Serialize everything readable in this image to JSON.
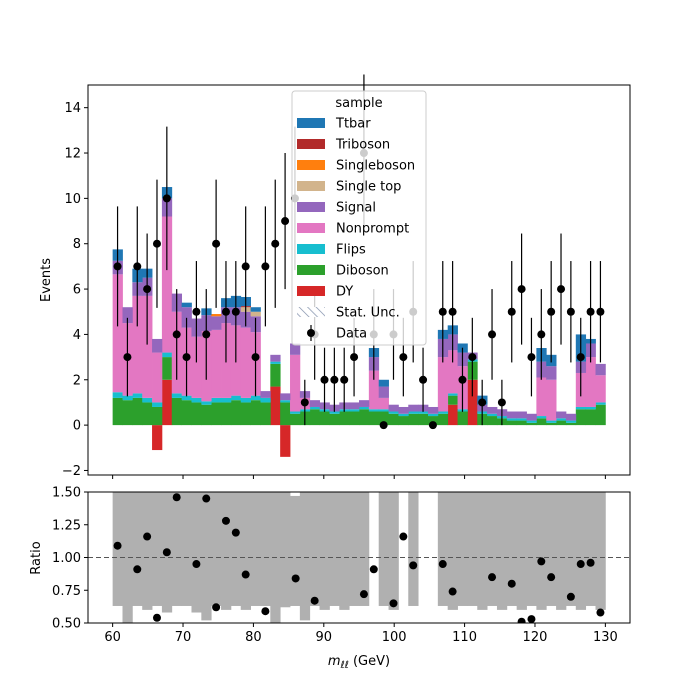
{
  "chart_data": [
    {
      "type": "area",
      "panel": "main",
      "ylabel": "Events",
      "xlim": [
        56.5,
        133.5
      ],
      "ylim": [
        -2.2,
        15.0
      ],
      "yticks": [
        -2,
        0,
        2,
        4,
        6,
        8,
        10,
        12,
        14
      ],
      "ytick_labels": [
        "−2",
        "0",
        "2",
        "4",
        "6",
        "8",
        "10",
        "12",
        "14"
      ],
      "xticks": [
        60,
        70,
        80,
        90,
        100,
        110,
        120,
        130
      ],
      "bin_edges": [
        60,
        61.4,
        62.8,
        64.2,
        65.6,
        67,
        68.4,
        69.8,
        71.2,
        72.6,
        74,
        75.4,
        76.8,
        78.2,
        79.6,
        81,
        82.4,
        83.8,
        85.2,
        86.6,
        88,
        89.4,
        90.8,
        92.2,
        93.6,
        95,
        96.4,
        97.8,
        99.2,
        100.6,
        102,
        103.4,
        104.8,
        106.2,
        107.6,
        109,
        110.4,
        111.8,
        113.2,
        114.6,
        116,
        117.4,
        118.8,
        120.2,
        121.6,
        123,
        124.4,
        125.8,
        127.2,
        128.6,
        130
      ],
      "legend": {
        "title": "sample",
        "placement": "upper center",
        "entries": [
          "Ttbar",
          "Triboson",
          "Singleboson",
          "Single top",
          "Signal",
          "Nonprompt",
          "Flips",
          "Diboson",
          "DY",
          "Stat. Unc.",
          "Data"
        ]
      },
      "series": [
        {
          "name": "DY",
          "color": "#d62728",
          "values": [
            0,
            0,
            0,
            0,
            -1.1,
            2.0,
            0,
            0,
            0,
            0,
            0,
            0,
            0,
            0,
            0,
            0,
            1.7,
            -1.4,
            0,
            0,
            0,
            0,
            0,
            0,
            0,
            0,
            0,
            0,
            0,
            0,
            0,
            0,
            0,
            0,
            0.9,
            0,
            2.0,
            0,
            0,
            0,
            0,
            0,
            0,
            0,
            0,
            0,
            0,
            0,
            0,
            0
          ]
        },
        {
          "name": "Diboson",
          "color": "#2ca02c",
          "values": [
            1.2,
            1.1,
            1.2,
            1.0,
            0.8,
            1.0,
            1.2,
            1.1,
            1.0,
            0.9,
            1.0,
            1.0,
            1.1,
            1.0,
            1.1,
            1.0,
            1.0,
            1.0,
            0.5,
            0.6,
            0.7,
            0.6,
            0.5,
            0.6,
            0.6,
            0.7,
            0.6,
            0.6,
            0.5,
            0.4,
            0.5,
            0.5,
            0.4,
            0.5,
            0.4,
            0.6,
            0.8,
            0.5,
            0.4,
            0.3,
            0.2,
            0.2,
            0.1,
            0.3,
            0.1,
            0.2,
            0.1,
            0.7,
            0.7,
            0.9
          ]
        },
        {
          "name": "Flips",
          "color": "#17becf",
          "values": [
            0.25,
            0.2,
            0.2,
            0.2,
            0.2,
            0.2,
            0.2,
            0.2,
            0.2,
            0.15,
            0.2,
            0.2,
            0.2,
            0.2,
            0.2,
            0.2,
            0.1,
            0.1,
            0.1,
            0.1,
            0.1,
            0.1,
            0.1,
            0.1,
            0.1,
            0.1,
            0.1,
            0.1,
            0.1,
            0.1,
            0.1,
            0.1,
            0.1,
            0.1,
            0.1,
            0.1,
            0.1,
            0.1,
            0.1,
            0.1,
            0.1,
            0.1,
            0.1,
            0.1,
            0.1,
            0.1,
            0.1,
            0.1,
            0.1,
            0.1
          ]
        },
        {
          "name": "Nonprompt",
          "color": "#e377c2",
          "values": [
            5.2,
            3.2,
            4.3,
            4.5,
            2.2,
            6.0,
            3.6,
            3.0,
            2.7,
            3.1,
            3.0,
            3.3,
            3.1,
            3.1,
            2.8,
            0,
            0,
            0,
            2.5,
            0.5,
            0,
            0,
            0,
            0,
            0,
            0,
            1.7,
            0.5,
            0,
            0,
            0,
            0,
            0,
            2.4,
            1.9,
            1.9,
            0,
            0,
            0,
            0,
            0,
            0,
            0,
            1.7,
            1.8,
            0,
            0,
            1.5,
            2.2,
            1.2
          ]
        },
        {
          "name": "Signal",
          "color": "#9467bd",
          "values": [
            0.6,
            0.7,
            0.6,
            0.8,
            0.6,
            0.8,
            0.8,
            0.9,
            0.8,
            0.7,
            0.6,
            0.7,
            0.8,
            0.7,
            0.7,
            0.3,
            0.3,
            0.3,
            0.5,
            0.3,
            0.3,
            0.3,
            0.3,
            0.3,
            0.3,
            0.3,
            0.6,
            0.5,
            0.3,
            0.3,
            0.3,
            0.3,
            0.3,
            0.8,
            0.7,
            0.6,
            0.3,
            0.3,
            0.3,
            0.3,
            0.3,
            0.3,
            0.3,
            0.7,
            0.6,
            0.3,
            0.3,
            0.5,
            0.6,
            0.5
          ]
        },
        {
          "name": "Single top",
          "color": "#d2b48c",
          "values": [
            0,
            0,
            0,
            0,
            0,
            0,
            0,
            0,
            0,
            0,
            0,
            0,
            0,
            0.2,
            0.2,
            0,
            0,
            0,
            0,
            0,
            0,
            0,
            0,
            0,
            0,
            0,
            0,
            0,
            0,
            0,
            0,
            0,
            0,
            0,
            0,
            0,
            0,
            0,
            0,
            0,
            0,
            0,
            0,
            0,
            0,
            0,
            0,
            0,
            0,
            0
          ]
        },
        {
          "name": "Singleboson",
          "color": "#ff7f0e",
          "values": [
            0,
            0,
            0,
            0,
            0,
            0,
            0,
            0,
            0,
            0,
            0.1,
            0,
            0,
            0,
            0,
            0,
            0,
            0,
            0,
            0,
            0,
            0,
            0,
            0,
            0,
            0,
            0,
            0,
            0,
            0,
            0,
            0,
            0,
            0,
            0,
            0,
            0,
            0,
            0,
            0,
            0,
            0,
            0,
            0,
            0,
            0,
            0,
            0,
            0,
            0
          ]
        },
        {
          "name": "Triboson",
          "color": "#b22a2a",
          "values": [
            0,
            0,
            0,
            0,
            0,
            0,
            0,
            0,
            0,
            0,
            0,
            0,
            0,
            0.05,
            0,
            0,
            0,
            0,
            0,
            0,
            0,
            0,
            0,
            0,
            0,
            0,
            0,
            0,
            0,
            0,
            0,
            0,
            0,
            0,
            0,
            0,
            0,
            0,
            0,
            0,
            0,
            0,
            0,
            0,
            0,
            0,
            0,
            0,
            0,
            0
          ]
        },
        {
          "name": "Ttbar",
          "color": "#1f77b4",
          "values": [
            0.5,
            0,
            0.6,
            0.4,
            0,
            0.5,
            0,
            0.2,
            0,
            0.3,
            0,
            0.4,
            0.5,
            0.4,
            0.2,
            0,
            0,
            0,
            0,
            0,
            0,
            0,
            0,
            0,
            0,
            0,
            0.4,
            0.3,
            0,
            0,
            0,
            0,
            0,
            0.4,
            0.4,
            0.4,
            0,
            0.4,
            0,
            0,
            0,
            0,
            0,
            0.6,
            0.5,
            0,
            0,
            1.2,
            0.2,
            0
          ]
        }
      ],
      "data_points": {
        "name": "Data",
        "x": [
          60.7,
          62.1,
          63.5,
          64.9,
          66.3,
          67.7,
          69.1,
          70.5,
          71.9,
          73.3,
          74.7,
          76.1,
          77.5,
          78.9,
          80.3,
          81.7,
          83.1,
          84.5,
          85.9,
          87.3,
          88.7,
          90.1,
          91.5,
          92.9,
          94.3,
          95.7,
          97.1,
          98.5,
          99.9,
          101.3,
          102.7,
          104.1,
          105.5,
          106.9,
          108.3,
          109.7,
          111.1,
          112.5,
          113.9,
          115.3,
          116.7,
          118.1,
          119.5,
          120.9,
          122.3,
          123.7,
          125.1,
          126.5,
          127.9,
          129.3
        ],
        "y": [
          7,
          3,
          7,
          6,
          8,
          10,
          4,
          3,
          5,
          4,
          8,
          5,
          5,
          7,
          3,
          7,
          8,
          9,
          10,
          1,
          4,
          2,
          2,
          2,
          3,
          12,
          4,
          0,
          4,
          3,
          5,
          2,
          0,
          5,
          5,
          2,
          3,
          1,
          4,
          1,
          5,
          6,
          3,
          4,
          5,
          6,
          5,
          3,
          5,
          5
        ]
      }
    },
    {
      "type": "scatter",
      "panel": "ratio",
      "ylabel": "Ratio",
      "xlabel": "m_ℓℓ (GeV)",
      "xlim": [
        56.5,
        133.5
      ],
      "ylim": [
        0.5,
        1.5
      ],
      "yticks": [
        0.5,
        0.75,
        1.0,
        1.25,
        1.5
      ],
      "ytick_labels": [
        "0.50",
        "0.75",
        "1.00",
        "1.25",
        "1.50"
      ],
      "xticks": [
        60,
        70,
        80,
        90,
        100,
        110,
        120,
        130
      ],
      "reference_line": 1.0,
      "uncertainty_band": {
        "color": "#b0b0b0",
        "lower": [
          0.63,
          0.5,
          0.63,
          0.6,
          0.63,
          0.58,
          0.63,
          0.63,
          0.58,
          0.52,
          0.63,
          0.6,
          0.63,
          0.6,
          0.63,
          0.63,
          0.5,
          0.62,
          0.63,
          0.52,
          0.63,
          0.6,
          0.63,
          0.6,
          0.63,
          0.63,
          null,
          0.63,
          0.6,
          null,
          0.63,
          null,
          null,
          0.63,
          0.6,
          0.63,
          0.63,
          0.6,
          0.63,
          0.6,
          0.63,
          0.6,
          0.63,
          0.6,
          0.63,
          0.6,
          0.63,
          0.6,
          0.63,
          0.6
        ],
        "upper": [
          1.5,
          1.5,
          1.5,
          1.5,
          1.5,
          1.5,
          1.5,
          1.5,
          1.5,
          1.5,
          1.5,
          1.5,
          1.5,
          1.5,
          1.5,
          1.5,
          1.5,
          1.5,
          1.47,
          1.5,
          1.5,
          1.5,
          1.5,
          1.5,
          1.5,
          1.5,
          null,
          1.5,
          1.5,
          null,
          1.5,
          null,
          null,
          1.5,
          1.5,
          1.5,
          1.5,
          1.5,
          1.5,
          1.5,
          1.5,
          1.5,
          1.5,
          1.5,
          1.5,
          1.5,
          1.5,
          1.5,
          1.5,
          1.5
        ]
      },
      "points": {
        "x": [
          60.7,
          63.5,
          64.9,
          66.3,
          67.7,
          69.1,
          71.9,
          73.3,
          74.7,
          76.1,
          77.5,
          78.9,
          81.7,
          86.0,
          88.7,
          95.7,
          97.1,
          99.9,
          101.3,
          102.7,
          106.9,
          108.3,
          113.9,
          116.7,
          118.1,
          119.5,
          120.9,
          122.3,
          125.1,
          126.5,
          127.9,
          129.3
        ],
        "y": [
          1.09,
          0.91,
          1.16,
          0.54,
          1.04,
          1.46,
          0.95,
          1.45,
          0.62,
          1.28,
          1.19,
          0.87,
          0.59,
          0.84,
          0.67,
          0.72,
          0.91,
          0.65,
          1.16,
          0.94,
          0.95,
          0.74,
          0.85,
          0.8,
          0.51,
          0.53,
          0.97,
          0.85,
          0.7,
          0.95,
          0.96,
          0.58
        ]
      }
    }
  ]
}
